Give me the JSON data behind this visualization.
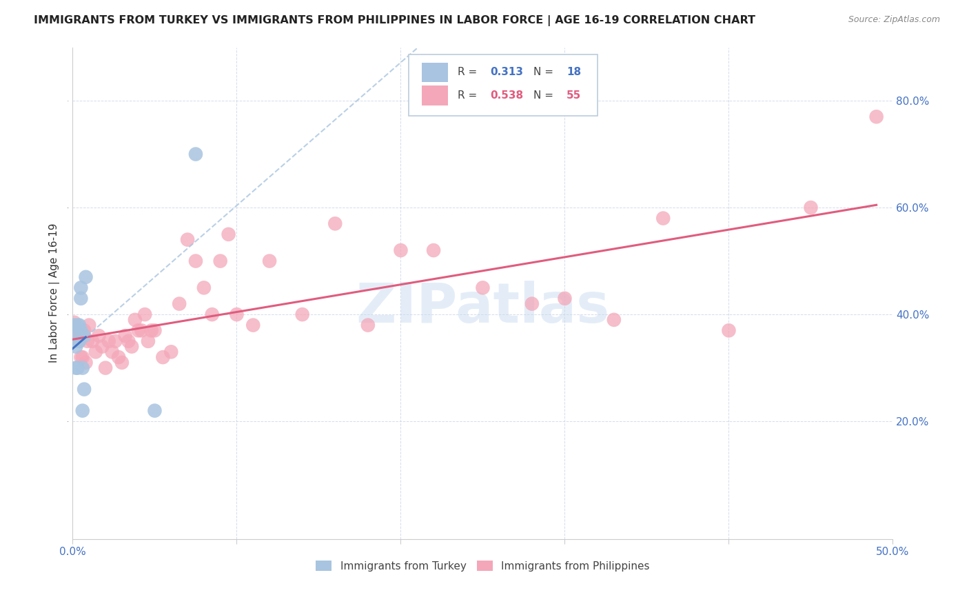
{
  "title": "IMMIGRANTS FROM TURKEY VS IMMIGRANTS FROM PHILIPPINES IN LABOR FORCE | AGE 16-19 CORRELATION CHART",
  "source": "Source: ZipAtlas.com",
  "ylabel": "In Labor Force | Age 16-19",
  "xlim": [
    0.0,
    0.5
  ],
  "ylim": [
    -0.02,
    0.9
  ],
  "xticks": [
    0.0,
    0.1,
    0.2,
    0.3,
    0.4,
    0.5
  ],
  "xtick_labels": [
    "0.0%",
    "",
    "",
    "",
    "",
    "50.0%"
  ],
  "ytick_labels_right": [
    "20.0%",
    "40.0%",
    "60.0%",
    "80.0%"
  ],
  "ytick_values_right": [
    0.2,
    0.4,
    0.6,
    0.8
  ],
  "turkey_R": 0.313,
  "turkey_N": 18,
  "philippines_R": 0.538,
  "philippines_N": 55,
  "turkey_color": "#a8c4e0",
  "philippines_color": "#f4a7b9",
  "trend_turkey_color": "#4472c4",
  "trend_philippines_color": "#e05c7e",
  "watermark": "ZIPatlas",
  "turkey_x": [
    0.001,
    0.001,
    0.002,
    0.002,
    0.003,
    0.003,
    0.004,
    0.004,
    0.005,
    0.005,
    0.005,
    0.006,
    0.006,
    0.007,
    0.007,
    0.008,
    0.05,
    0.075
  ],
  "turkey_y": [
    0.38,
    0.36,
    0.34,
    0.3,
    0.3,
    0.38,
    0.35,
    0.38,
    0.43,
    0.45,
    0.37,
    0.22,
    0.3,
    0.26,
    0.36,
    0.47,
    0.22,
    0.7
  ],
  "philippines_x": [
    0.001,
    0.002,
    0.003,
    0.004,
    0.005,
    0.006,
    0.007,
    0.008,
    0.009,
    0.01,
    0.012,
    0.014,
    0.016,
    0.018,
    0.02,
    0.022,
    0.024,
    0.026,
    0.028,
    0.03,
    0.032,
    0.034,
    0.036,
    0.038,
    0.04,
    0.042,
    0.044,
    0.046,
    0.048,
    0.05,
    0.055,
    0.06,
    0.065,
    0.07,
    0.075,
    0.08,
    0.085,
    0.09,
    0.095,
    0.1,
    0.11,
    0.12,
    0.14,
    0.16,
    0.18,
    0.2,
    0.22,
    0.25,
    0.28,
    0.3,
    0.33,
    0.36,
    0.4,
    0.45,
    0.49
  ],
  "philippines_y": [
    0.385,
    0.37,
    0.37,
    0.35,
    0.32,
    0.32,
    0.37,
    0.31,
    0.35,
    0.38,
    0.35,
    0.33,
    0.36,
    0.34,
    0.3,
    0.35,
    0.33,
    0.35,
    0.32,
    0.31,
    0.36,
    0.35,
    0.34,
    0.39,
    0.37,
    0.37,
    0.4,
    0.35,
    0.37,
    0.37,
    0.32,
    0.33,
    0.42,
    0.54,
    0.5,
    0.45,
    0.4,
    0.5,
    0.55,
    0.4,
    0.38,
    0.5,
    0.4,
    0.57,
    0.38,
    0.52,
    0.52,
    0.45,
    0.42,
    0.43,
    0.39,
    0.58,
    0.37,
    0.6,
    0.77
  ]
}
